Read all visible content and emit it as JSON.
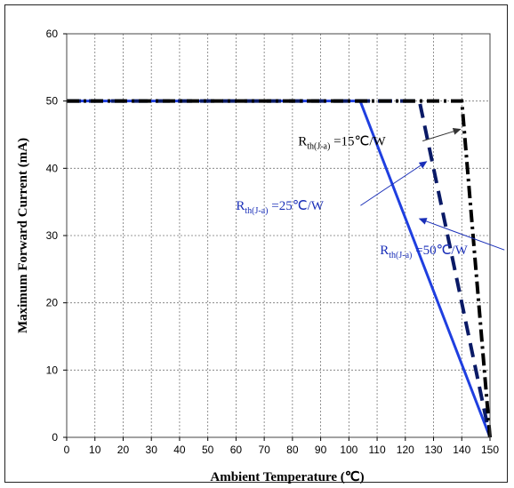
{
  "chart_data": {
    "type": "line",
    "xlabel": "Ambient Temperature (℃)",
    "ylabel": "Maximum Forward Current (mA)",
    "xlim": [
      0,
      150
    ],
    "ylim": [
      0,
      60
    ],
    "xticks": [
      0,
      10,
      20,
      30,
      40,
      50,
      60,
      70,
      80,
      90,
      100,
      110,
      120,
      130,
      140,
      150
    ],
    "yticks": [
      0,
      10,
      20,
      30,
      40,
      50,
      60
    ],
    "grid": "dashed",
    "series": [
      {
        "name": "Rth(J-a)=15℃/W",
        "color": "#000000",
        "style": "dash-dot",
        "x": [
          0,
          140,
          150
        ],
        "y": [
          50,
          50,
          0
        ]
      },
      {
        "name": "Rth(J-a)=25℃/W",
        "color": "#0a1a66",
        "style": "dash",
        "x": [
          0,
          125,
          150
        ],
        "y": [
          50,
          50,
          0
        ]
      },
      {
        "name": "Rth(J-a)=50℃/W",
        "color": "#1f3fe0",
        "style": "solid",
        "x": [
          0,
          104,
          150
        ],
        "y": [
          50,
          50,
          0
        ]
      }
    ],
    "annotations": [
      {
        "main": "R",
        "sub": "th(J-a)",
        "rest": " =15℃/W",
        "color": "#000000",
        "text_x": 82,
        "text_y": 43.4,
        "arrow_to_x": 139.5,
        "arrow_to_y": 45.8
      },
      {
        "main": "R",
        "sub": "th(J-a)",
        "rest": " =25℃/W",
        "color": "#1a2fb8",
        "text_x": 60,
        "text_y": 33.8,
        "arrow_to_x": 127.5,
        "arrow_to_y": 41
      },
      {
        "main": "R",
        "sub": "th(J-a)",
        "rest": " =50℃/W",
        "color": "#1a2fb8",
        "text_x": 111,
        "text_y": 27.2,
        "arrow_to_x": 125,
        "arrow_to_y": 32.5
      }
    ]
  }
}
